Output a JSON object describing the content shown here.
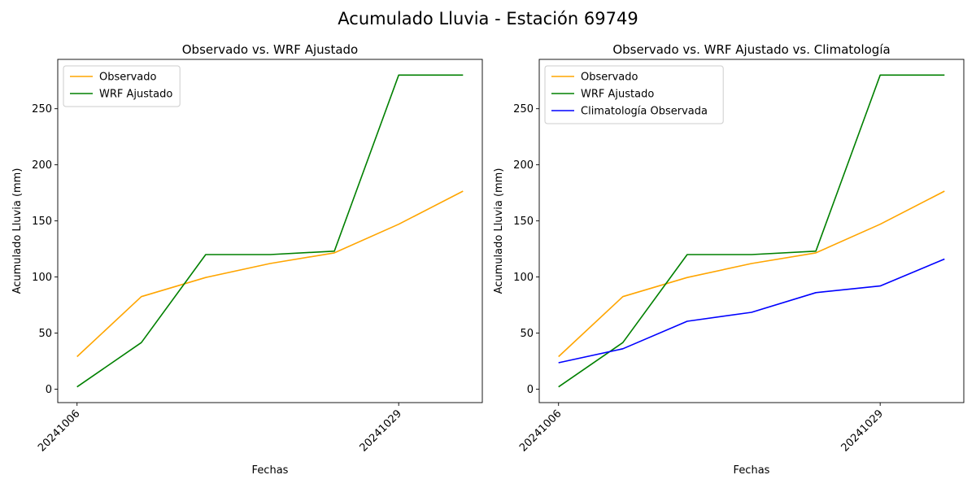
{
  "figure": {
    "title": "Acumulado Lluvia - Estación 69749"
  },
  "colors": {
    "observado": "#ffa500",
    "wrf": "#008000",
    "clima": "#0000ff"
  },
  "chart_data": [
    {
      "type": "line",
      "title": "Observado vs. WRF Ajustado",
      "xlabel": "Fechas",
      "ylabel": "Acumulado Lluvia (mm)",
      "x_tick_labels": [
        "20241006",
        "20241029"
      ],
      "x_tick_positions": [
        0,
        5
      ],
      "x": [
        0,
        1,
        2,
        3,
        4,
        5,
        6
      ],
      "ylim": [
        -12,
        294
      ],
      "y_ticks": [
        0,
        50,
        100,
        150,
        200,
        250
      ],
      "grid": false,
      "legend_position": "upper left",
      "series": [
        {
          "name": "Observado",
          "color_key": "observado",
          "values": [
            29,
            82.5,
            99.5,
            112,
            121.5,
            147,
            176.5
          ]
        },
        {
          "name": "WRF Ajustado",
          "color_key": "wrf",
          "values": [
            2,
            41.5,
            120,
            120,
            123,
            280,
            280
          ]
        }
      ]
    },
    {
      "type": "line",
      "title": "Observado vs. WRF Ajustado vs. Climatología",
      "xlabel": "Fechas",
      "ylabel": "Acumulado Lluvia (mm)",
      "x_tick_labels": [
        "20241006",
        "20241029"
      ],
      "x_tick_positions": [
        0,
        5
      ],
      "x": [
        0,
        1,
        2,
        3,
        4,
        5,
        6
      ],
      "ylim": [
        -12,
        294
      ],
      "y_ticks": [
        0,
        50,
        100,
        150,
        200,
        250
      ],
      "grid": false,
      "legend_position": "upper left",
      "series": [
        {
          "name": "Observado",
          "color_key": "observado",
          "values": [
            29,
            82.5,
            99.5,
            112,
            121.5,
            147,
            176.5
          ]
        },
        {
          "name": "WRF Ajustado",
          "color_key": "wrf",
          "values": [
            2,
            41.5,
            120,
            120,
            123,
            280,
            280
          ]
        },
        {
          "name": "Climatología Observada",
          "color_key": "clima",
          "values": [
            23.5,
            36,
            60.5,
            68.5,
            86,
            92,
            116
          ]
        }
      ]
    }
  ]
}
